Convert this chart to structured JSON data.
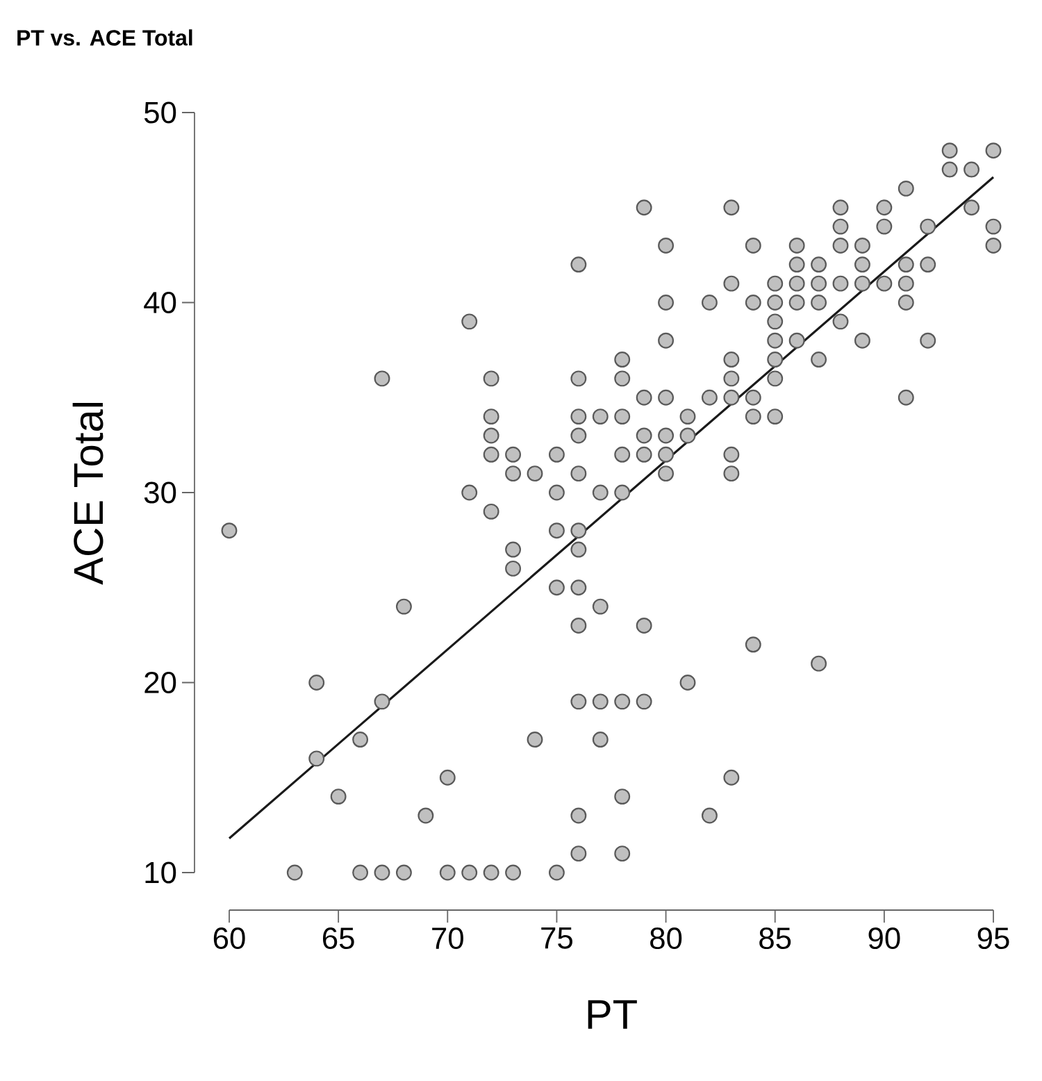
{
  "chart_data": {
    "type": "scatter",
    "title": "PT vs. ACE Total",
    "xlabel": "PT",
    "ylabel": "ACE Total",
    "xlim": [
      60,
      95
    ],
    "ylim": [
      10,
      50
    ],
    "xticks": [
      60,
      65,
      70,
      75,
      80,
      85,
      90,
      95
    ],
    "yticks": [
      10,
      20,
      30,
      40,
      50
    ],
    "grid": false,
    "series": [
      {
        "marker": "circle",
        "color": "#c0c0c0",
        "x": [
          60,
          63,
          64,
          64,
          65,
          66,
          66,
          67,
          67,
          67,
          68,
          68,
          69,
          70,
          70,
          71,
          71,
          71,
          72,
          72,
          72,
          72,
          72,
          72,
          73,
          73,
          73,
          73,
          73,
          74,
          74,
          75,
          75,
          75,
          75,
          75,
          76,
          76,
          76,
          76,
          76,
          76,
          76,
          76,
          76,
          76,
          76,
          76,
          77,
          77,
          77,
          77,
          77,
          78,
          78,
          78,
          78,
          78,
          78,
          78,
          78,
          79,
          79,
          79,
          79,
          79,
          79,
          80,
          80,
          80,
          80,
          80,
          80,
          80,
          81,
          81,
          81,
          82,
          82,
          82,
          83,
          83,
          83,
          83,
          83,
          83,
          83,
          83,
          84,
          84,
          84,
          84,
          84,
          85,
          85,
          85,
          85,
          85,
          85,
          85,
          86,
          86,
          86,
          86,
          86,
          87,
          87,
          87,
          87,
          87,
          88,
          88,
          88,
          88,
          88,
          89,
          89,
          89,
          89,
          90,
          90,
          90,
          91,
          91,
          91,
          91,
          91,
          92,
          92,
          92,
          93,
          93,
          94,
          94,
          95,
          95,
          95
        ],
        "values": [
          28,
          10,
          20,
          16,
          14,
          17,
          10,
          36,
          19,
          10,
          24,
          10,
          13,
          15,
          10,
          39,
          30,
          10,
          36,
          34,
          33,
          32,
          29,
          10,
          32,
          31,
          27,
          26,
          10,
          31,
          17,
          32,
          30,
          28,
          25,
          10,
          42,
          36,
          34,
          33,
          31,
          28,
          27,
          25,
          23,
          19,
          13,
          11,
          34,
          30,
          24,
          19,
          17,
          37,
          36,
          34,
          32,
          30,
          19,
          14,
          11,
          45,
          35,
          33,
          32,
          23,
          19,
          43,
          40,
          38,
          35,
          33,
          32,
          31,
          34,
          33,
          20,
          40,
          35,
          13,
          45,
          41,
          37,
          36,
          35,
          32,
          31,
          15,
          43,
          40,
          35,
          34,
          22,
          41,
          40,
          39,
          38,
          37,
          36,
          34,
          43,
          42,
          41,
          40,
          38,
          42,
          41,
          40,
          37,
          21,
          45,
          44,
          43,
          41,
          39,
          43,
          42,
          41,
          38,
          45,
          44,
          41,
          46,
          42,
          41,
          40,
          35,
          44,
          42,
          38,
          48,
          47,
          47,
          45,
          48,
          44,
          43
        ]
      },
      {
        "type": "line",
        "marker": "none",
        "color": "#1a1a1a",
        "x": [
          60,
          95
        ],
        "values": [
          11.8,
          46.6
        ]
      }
    ]
  }
}
